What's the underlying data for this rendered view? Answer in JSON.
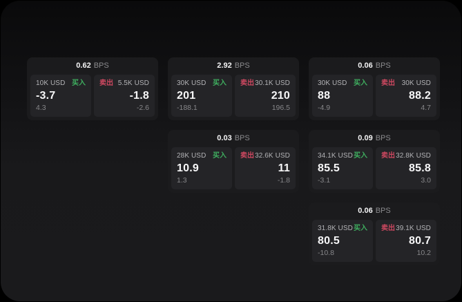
{
  "colors": {
    "buy_green": "#3fae5f",
    "sell_red": "#cd4860",
    "card_bg": "#1b1b1d",
    "panel_bg": "#242427"
  },
  "cards": [
    {
      "bps_value": "0.62",
      "bps_unit": "BPS",
      "buy": {
        "amount": "10K USD",
        "side_label": "买入",
        "value": "-3.7",
        "sub_value": "4.3"
      },
      "sell": {
        "side_label": "卖出",
        "amount": "5.5K USD",
        "value": "-1.8",
        "sub_value": "-2.6"
      }
    },
    {
      "bps_value": "2.92",
      "bps_unit": "BPS",
      "buy": {
        "amount": "30K USD",
        "side_label": "买入",
        "value": "201",
        "sub_value": "-188.1"
      },
      "sell": {
        "side_label": "卖出",
        "amount": "30.1K USD",
        "value": "210",
        "sub_value": "196.5"
      }
    },
    {
      "bps_value": "0.06",
      "bps_unit": "BPS",
      "buy": {
        "amount": "30K USD",
        "side_label": "买入",
        "value": "88",
        "sub_value": "-4.9"
      },
      "sell": {
        "side_label": "卖出",
        "amount": "30K USD",
        "value": "88.2",
        "sub_value": "4.7"
      }
    },
    {
      "bps_value": "0.03",
      "bps_unit": "BPS",
      "buy": {
        "amount": "28K USD",
        "side_label": "买入",
        "value": "10.9",
        "sub_value": "1.3"
      },
      "sell": {
        "side_label": "卖出",
        "amount": "32.6K USD",
        "value": "11",
        "sub_value": "-1.8"
      }
    },
    {
      "bps_value": "0.09",
      "bps_unit": "BPS",
      "buy": {
        "amount": "34.1K USD",
        "side_label": "买入",
        "value": "85.5",
        "sub_value": "-3.1"
      },
      "sell": {
        "side_label": "卖出",
        "amount": "32.8K USD",
        "value": "85.8",
        "sub_value": "3.0"
      }
    },
    {
      "bps_value": "0.06",
      "bps_unit": "BPS",
      "buy": {
        "amount": "31.8K USD",
        "side_label": "买入",
        "value": "80.5",
        "sub_value": "-10.8"
      },
      "sell": {
        "side_label": "卖出",
        "amount": "39.1K USD",
        "value": "80.7",
        "sub_value": "10.2"
      }
    }
  ]
}
